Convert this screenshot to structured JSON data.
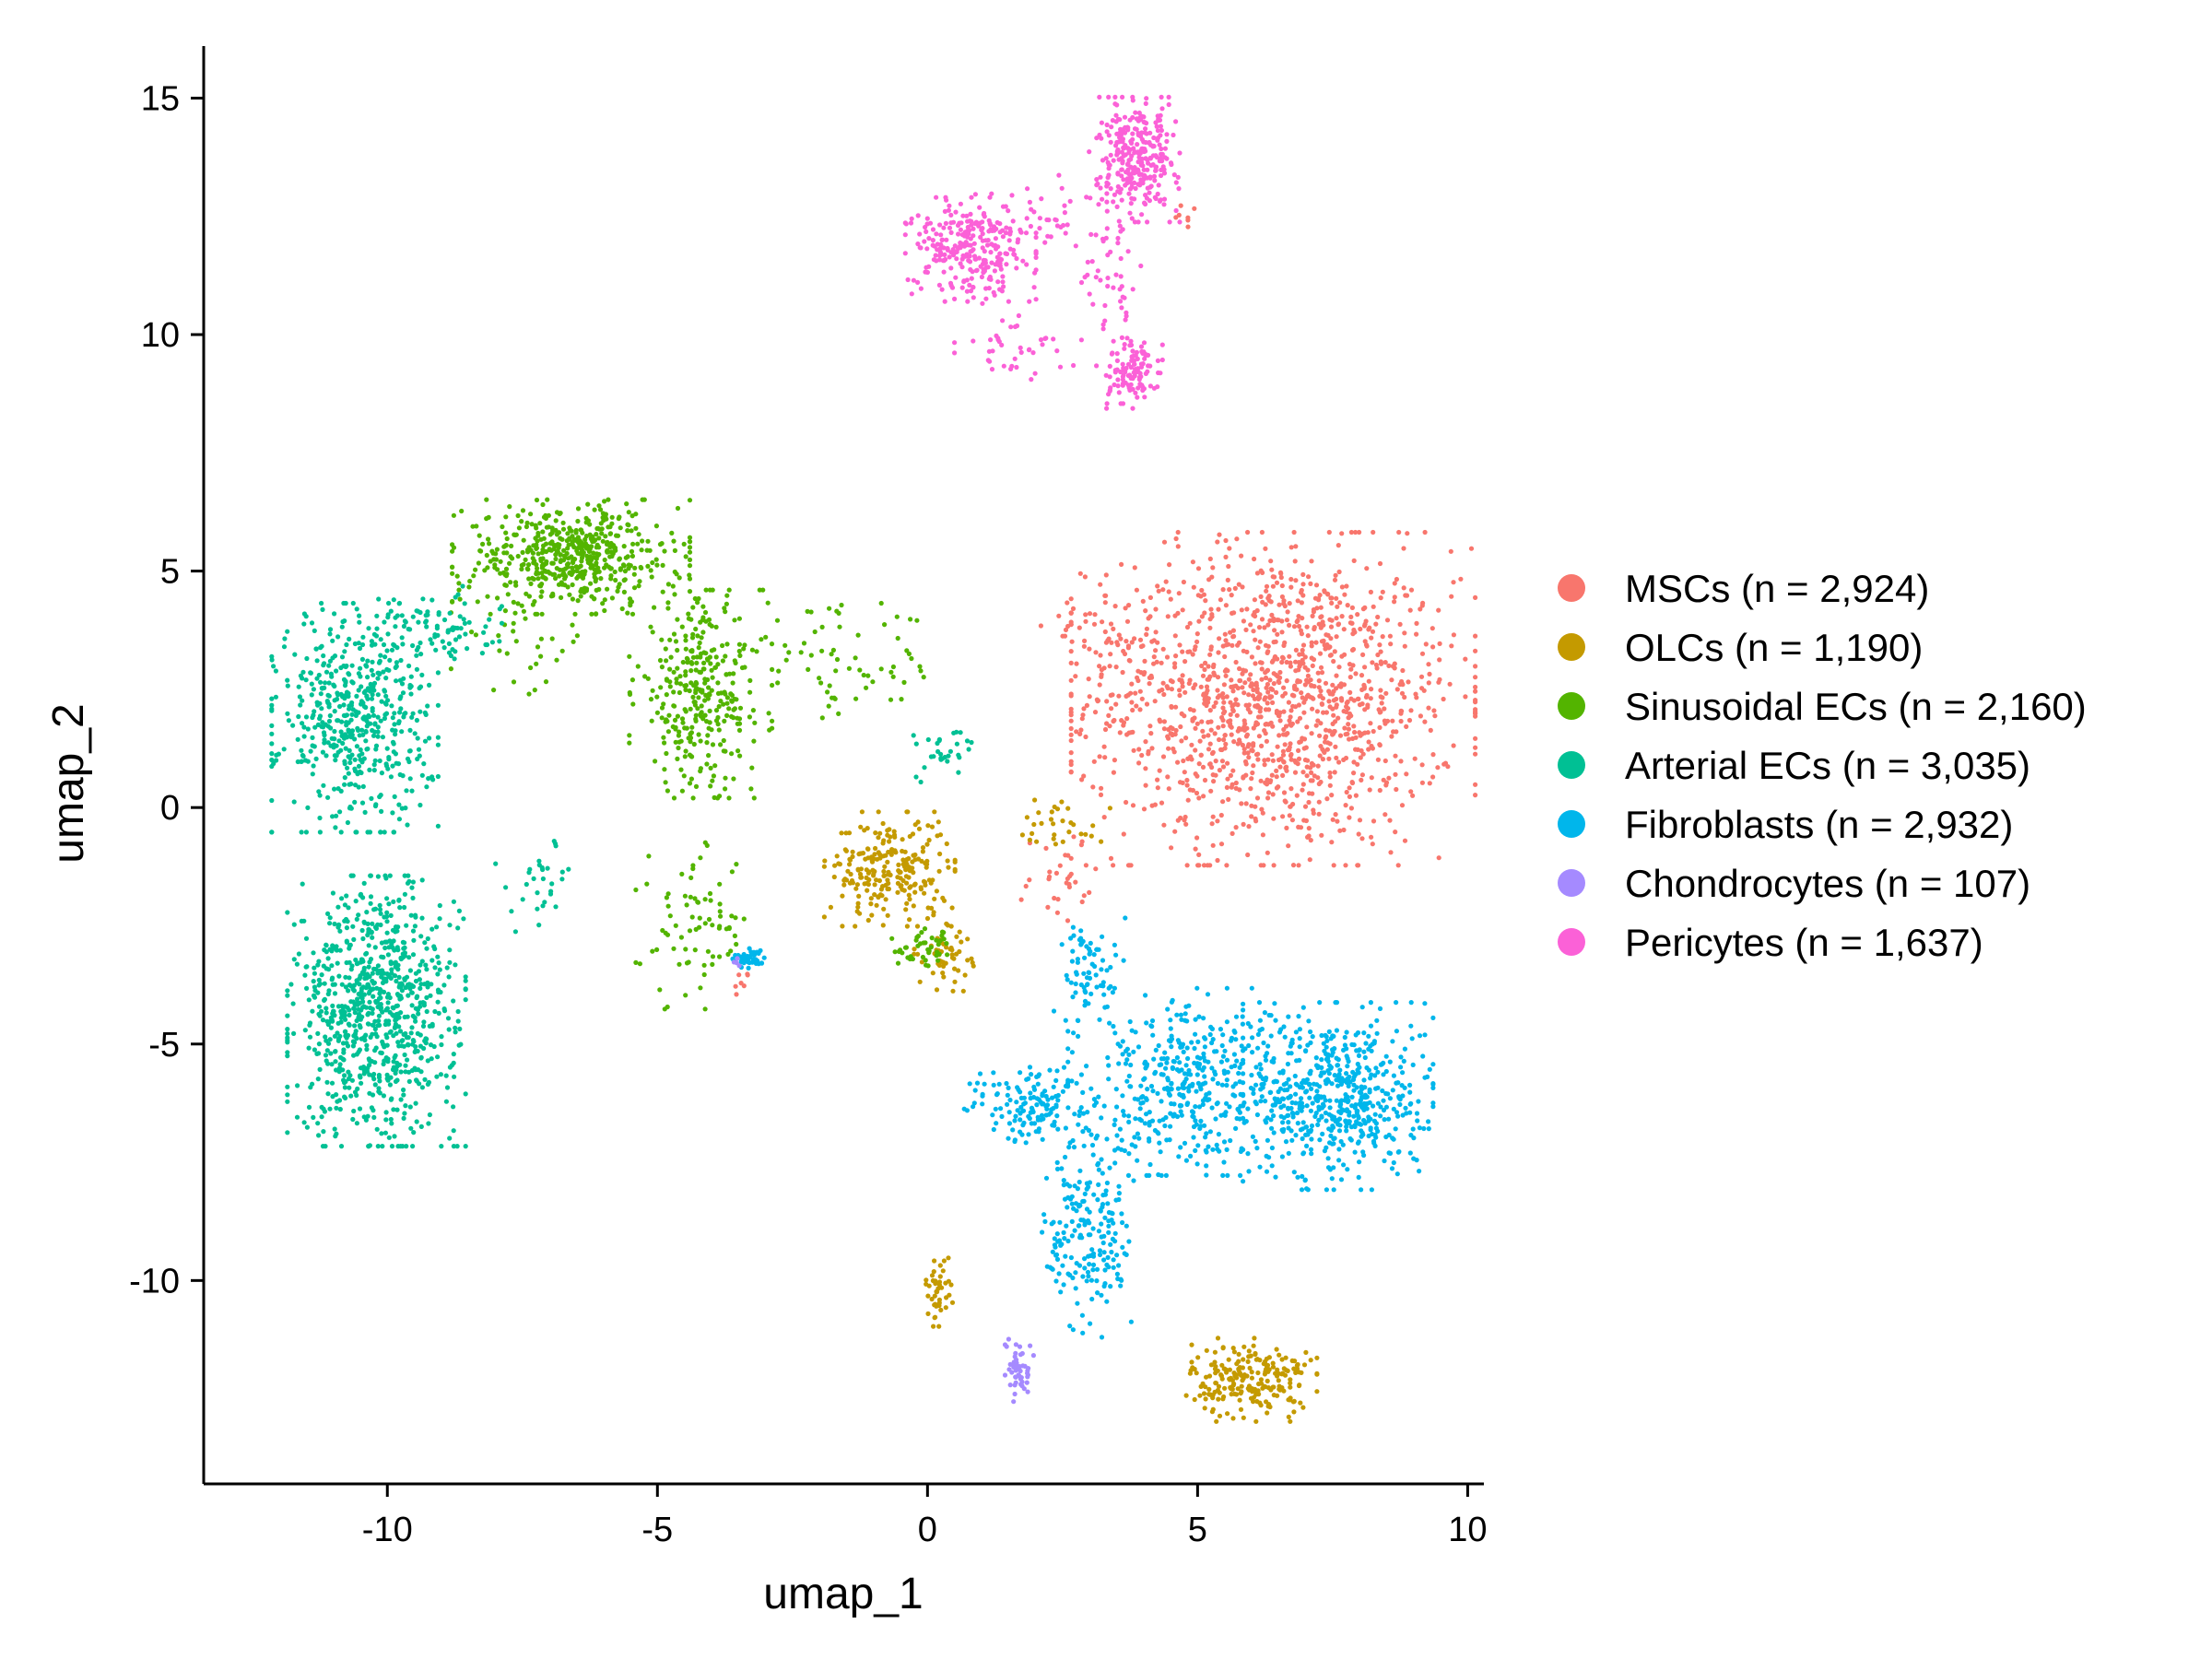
{
  "chart_data": {
    "type": "scatter",
    "title": "",
    "xlabel": "umap_1",
    "ylabel": "umap_2",
    "xlim": [
      -13.4,
      10.3
    ],
    "ylim": [
      -14.3,
      16.1
    ],
    "x_ticks": [
      -10,
      -5,
      0,
      5,
      10
    ],
    "y_ticks": [
      -10,
      -5,
      0,
      5,
      10,
      15
    ],
    "x_tick_labels": [
      "-10",
      "-5",
      "0",
      "5",
      "10"
    ],
    "y_tick_labels": [
      "-10",
      "-5",
      "0",
      "5",
      "10",
      "15"
    ],
    "grid": false,
    "legend_position": "right",
    "series": [
      {
        "name": "MSCs (n = 2,924)",
        "color": "#F8766D",
        "n": 2924,
        "clusters": [
          {
            "center": [
              6.4,
              2.3
            ],
            "spread": [
              1.7,
              1.6
            ],
            "weight": 0.93
          },
          {
            "center": [
              3.2,
              3.6
            ],
            "spread": [
              0.5,
              0.4
            ],
            "weight": 0.03
          },
          {
            "center": [
              2.4,
              -1.7
            ],
            "spread": [
              0.4,
              0.6
            ],
            "weight": 0.02
          },
          {
            "center": [
              -3.4,
              -3.6
            ],
            "spread": [
              0.1,
              0.2
            ],
            "weight": 0.005
          },
          {
            "center": [
              4.8,
              12.5
            ],
            "spread": [
              0.1,
              0.15
            ],
            "weight": 0.005
          }
        ]
      },
      {
        "name": "OLCs (n = 1,190)",
        "color": "#C49A00",
        "n": 1190,
        "clusters": [
          {
            "center": [
              -0.7,
              -1.3
            ],
            "spread": [
              0.55,
              0.55
            ],
            "weight": 0.4
          },
          {
            "center": [
              0.3,
              -3.0
            ],
            "spread": [
              0.25,
              0.4
            ],
            "weight": 0.1
          },
          {
            "center": [
              6.0,
              -12.1
            ],
            "spread": [
              0.55,
              0.4
            ],
            "weight": 0.38
          },
          {
            "center": [
              0.2,
              -10.2
            ],
            "spread": [
              0.12,
              0.35
            ],
            "weight": 0.07
          },
          {
            "center": [
              2.5,
              -0.3
            ],
            "spread": [
              0.4,
              0.25
            ],
            "weight": 0.05
          }
        ]
      },
      {
        "name": "Sinusoidal ECs (n = 2,160)",
        "color": "#53B400",
        "n": 2160,
        "clusters": [
          {
            "center": [
              -6.6,
              5.3
            ],
            "spread": [
              1.0,
              0.55
            ],
            "weight": 0.5
          },
          {
            "center": [
              -4.2,
              2.4
            ],
            "spread": [
              0.6,
              1.0
            ],
            "weight": 0.3
          },
          {
            "center": [
              -1.5,
              3.0
            ],
            "spread": [
              0.9,
              0.6
            ],
            "weight": 0.06
          },
          {
            "center": [
              -4.3,
              -2.5
            ],
            "spread": [
              0.5,
              0.8
            ],
            "weight": 0.07
          },
          {
            "center": [
              0.0,
              -3.0
            ],
            "spread": [
              0.3,
              0.2
            ],
            "weight": 0.04
          },
          {
            "center": [
              -7.5,
              3.5
            ],
            "spread": [
              0.6,
              0.5
            ],
            "weight": 0.03
          }
        ]
      },
      {
        "name": "Arterial ECs (n = 3,035)",
        "color": "#00C094",
        "n": 3035,
        "clusters": [
          {
            "center": [
              -10.6,
              1.9
            ],
            "spread": [
              0.7,
              1.1
            ],
            "weight": 0.34
          },
          {
            "center": [
              -10.2,
              -4.3
            ],
            "spread": [
              0.75,
              1.3
            ],
            "weight": 0.56
          },
          {
            "center": [
              -9.2,
              3.8
            ],
            "spread": [
              0.6,
              0.4
            ],
            "weight": 0.06
          },
          {
            "center": [
              -7.2,
              -1.7
            ],
            "spread": [
              0.4,
              0.45
            ],
            "weight": 0.02
          },
          {
            "center": [
              0.4,
              1.2
            ],
            "spread": [
              0.3,
              0.3
            ],
            "weight": 0.02
          }
        ]
      },
      {
        "name": "Fibroblasts (n = 2,932)",
        "color": "#00B6EB",
        "n": 2932,
        "clusters": [
          {
            "center": [
              7.6,
              -6.1
            ],
            "spread": [
              0.8,
              0.9
            ],
            "weight": 0.38
          },
          {
            "center": [
              4.8,
              -5.8
            ],
            "spread": [
              1.0,
              0.9
            ],
            "weight": 0.3
          },
          {
            "center": [
              2.0,
              -6.3
            ],
            "spread": [
              0.6,
              0.4
            ],
            "weight": 0.1
          },
          {
            "center": [
              3.0,
              -9.0
            ],
            "spread": [
              0.4,
              1.0
            ],
            "weight": 0.14
          },
          {
            "center": [
              3.0,
              -3.4
            ],
            "spread": [
              0.3,
              0.5
            ],
            "weight": 0.05
          },
          {
            "center": [
              -3.3,
              -3.2
            ],
            "spread": [
              0.15,
              0.1
            ],
            "weight": 0.03
          }
        ]
      },
      {
        "name": "Chondrocytes (n = 107)",
        "color": "#A58AFF",
        "n": 107,
        "clusters": [
          {
            "center": [
              1.7,
              -11.9
            ],
            "spread": [
              0.12,
              0.3
            ],
            "weight": 0.92
          },
          {
            "center": [
              -3.5,
              -3.3
            ],
            "spread": [
              0.05,
              0.05
            ],
            "weight": 0.08
          }
        ]
      },
      {
        "name": "Pericytes (n = 1,637)",
        "color": "#FB61D7",
        "n": 1637,
        "clusters": [
          {
            "center": [
              0.8,
              11.8
            ],
            "spread": [
              0.55,
              0.5
            ],
            "weight": 0.33
          },
          {
            "center": [
              3.9,
              13.7
            ],
            "spread": [
              0.35,
              0.6
            ],
            "weight": 0.35
          },
          {
            "center": [
              3.8,
              9.2
            ],
            "spread": [
              0.25,
              0.3
            ],
            "weight": 0.13
          },
          {
            "center": [
              3.4,
              11.3
            ],
            "spread": [
              0.25,
              1.3
            ],
            "weight": 0.08
          },
          {
            "center": [
              2.0,
              12.6
            ],
            "spread": [
              0.6,
              0.35
            ],
            "weight": 0.06
          },
          {
            "center": [
              1.6,
              9.8
            ],
            "spread": [
              0.5,
              0.5
            ],
            "weight": 0.05
          }
        ]
      }
    ]
  }
}
